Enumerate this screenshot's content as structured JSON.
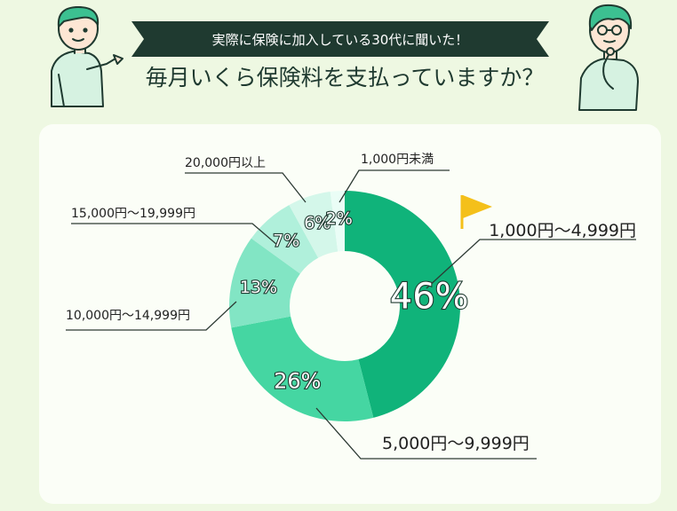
{
  "header": {
    "ribbon_text": "実際に保険に加入している30代に聞いた！",
    "title": "毎月いくら保険料を支払っていますか？"
  },
  "colors": {
    "background": "#eef8e2",
    "card": "#fbfef7",
    "ribbon": "#1f3a30",
    "flag": "#f4c01a"
  },
  "icons": {
    "left_person": "person-pointing-icon",
    "right_person": "person-thinking-icon",
    "flag": "flag-icon"
  },
  "chart_data": {
    "type": "pie",
    "donut": true,
    "title": "毎月いくら保険料を支払っていますか？",
    "slices": [
      {
        "label": "1,000円～4,999円",
        "value": 46,
        "display": "46%",
        "color": "#10b37a"
      },
      {
        "label": "5,000円～9,999円",
        "value": 26,
        "display": "26%",
        "color": "#45d6a2"
      },
      {
        "label": "10,000円～14,999円",
        "value": 13,
        "display": "13%",
        "color": "#82e5c4"
      },
      {
        "label": "15,000円～19,999円",
        "value": 7,
        "display": "7%",
        "color": "#b0f0db"
      },
      {
        "label": "20,000円以上",
        "value": 6,
        "display": "6%",
        "color": "#d4f7ea"
      },
      {
        "label": "1,000円未満",
        "value": 2,
        "display": "2%",
        "color": "#eafdf6"
      }
    ]
  }
}
